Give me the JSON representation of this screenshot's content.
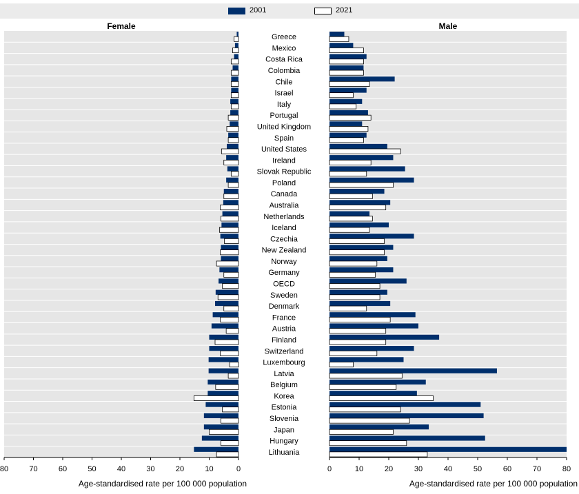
{
  "legend": {
    "items": [
      {
        "label": "2001",
        "color": "#002f6c"
      },
      {
        "label": "2021",
        "color": "#ffffff"
      }
    ]
  },
  "chart_data": [
    {
      "type": "bar",
      "orientation": "horizontal",
      "title": "Female",
      "xlabel": "Age-standardised rate per 100 000 population",
      "xlim": [
        0,
        80
      ],
      "x_reversed": true,
      "x_ticks": [
        80,
        70,
        60,
        50,
        40,
        30,
        20,
        10,
        0
      ],
      "categories": [
        "Greece",
        "Mexico",
        "Costa Rica",
        "Colombia",
        "Chile",
        "Israel",
        "Italy",
        "Portugal",
        "United Kingdom",
        "Spain",
        "United States",
        "Ireland",
        "Slovak Republic",
        "Poland",
        "Canada",
        "Australia",
        "Netherlands",
        "Iceland",
        "Czechia",
        "New Zealand",
        "Norway",
        "Germany",
        "OECD",
        "Sweden",
        "Denmark",
        "France",
        "Austria",
        "Finland",
        "Switzerland",
        "Luxembourg",
        "Latvia",
        "Belgium",
        "Korea",
        "Estonia",
        "Slovenia",
        "Japan",
        "Hungary",
        "Lithuania"
      ],
      "series": [
        {
          "name": "2001",
          "color": "#002f6c",
          "values": [
            0.6,
            1.2,
            1.5,
            2.0,
            2.5,
            2.5,
            2.8,
            2.8,
            3.0,
            3.5,
            4.0,
            4.2,
            3.8,
            4.2,
            5.0,
            5.2,
            5.5,
            5.8,
            6.2,
            6.0,
            6.0,
            6.5,
            6.8,
            7.8,
            8.0,
            8.8,
            9.2,
            10.0,
            10.0,
            10.2,
            10.2,
            10.5,
            10.5,
            11.2,
            11.8,
            11.8,
            12.5,
            15.2
          ]
        },
        {
          "name": "2021",
          "color": "#ffffff",
          "values": [
            1.5,
            2.0,
            2.5,
            2.5,
            2.5,
            2.5,
            2.5,
            3.5,
            4.0,
            3.5,
            5.8,
            5.0,
            2.5,
            3.5,
            5.0,
            6.2,
            6.0,
            6.5,
            4.8,
            6.2,
            7.5,
            5.0,
            5.5,
            7.0,
            5.0,
            6.2,
            4.2,
            8.0,
            6.2,
            3.0,
            3.5,
            7.8,
            15.2,
            5.5,
            6.0,
            10.0,
            6.0,
            7.5
          ]
        }
      ]
    },
    {
      "type": "bar",
      "orientation": "horizontal",
      "title": "Male",
      "xlabel": "Age-standardised rate per 100 000 population",
      "xlim": [
        0,
        80
      ],
      "x_ticks": [
        0,
        10,
        20,
        30,
        40,
        50,
        60,
        70,
        80
      ],
      "categories": [
        "Greece",
        "Mexico",
        "Costa Rica",
        "Colombia",
        "Chile",
        "Israel",
        "Italy",
        "Portugal",
        "United Kingdom",
        "Spain",
        "United States",
        "Ireland",
        "Slovak Republic",
        "Poland",
        "Canada",
        "Australia",
        "Netherlands",
        "Iceland",
        "Czechia",
        "New Zealand",
        "Norway",
        "Germany",
        "OECD",
        "Sweden",
        "Denmark",
        "France",
        "Austria",
        "Finland",
        "Switzerland",
        "Luxembourg",
        "Latvia",
        "Belgium",
        "Korea",
        "Estonia",
        "Slovenia",
        "Japan",
        "Hungary",
        "Lithuania"
      ],
      "series": [
        {
          "name": "2001",
          "color": "#002f6c",
          "values": [
            5.0,
            8.0,
            12.5,
            11.5,
            22.0,
            12.5,
            11.0,
            13.0,
            11.0,
            12.5,
            19.5,
            21.5,
            25.5,
            28.5,
            18.5,
            20.5,
            13.5,
            20.0,
            28.5,
            21.5,
            19.5,
            21.5,
            26.0,
            19.5,
            20.5,
            29.0,
            30.0,
            37.0,
            28.5,
            25.0,
            56.5,
            32.5,
            29.5,
            51.0,
            52.0,
            33.5,
            52.5,
            80.0
          ]
        },
        {
          "name": "2021",
          "color": "#ffffff",
          "values": [
            6.5,
            11.5,
            11.5,
            11.5,
            13.5,
            8.0,
            9.0,
            14.0,
            13.0,
            11.5,
            24.0,
            14.0,
            12.5,
            21.5,
            14.5,
            19.0,
            14.5,
            13.5,
            18.5,
            18.5,
            16.0,
            15.5,
            17.0,
            17.0,
            12.5,
            20.5,
            19.0,
            19.0,
            16.0,
            8.0,
            24.5,
            22.5,
            35.0,
            24.0,
            27.0,
            21.5,
            26.0,
            33.0
          ]
        }
      ]
    }
  ]
}
